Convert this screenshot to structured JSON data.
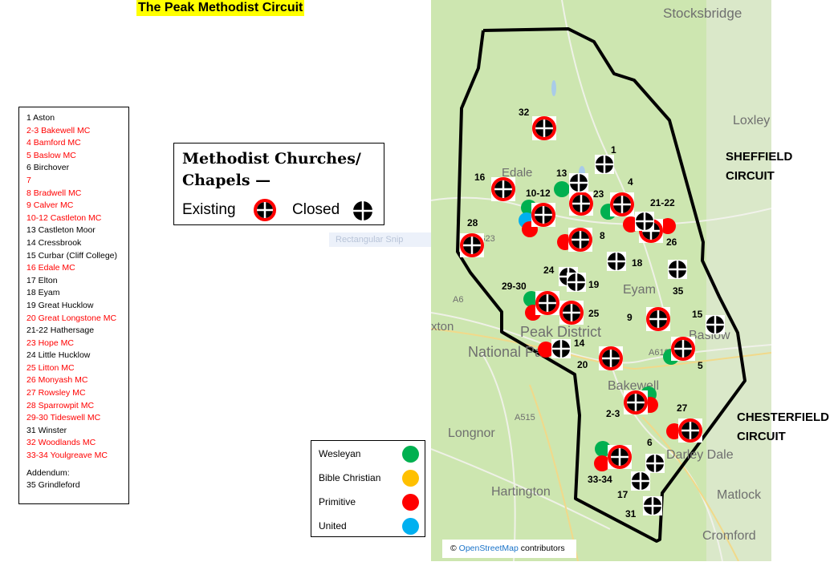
{
  "title": "The Peak Methodist Circuit",
  "churches": [
    {
      "text": "1 Aston",
      "existing": false
    },
    {
      "text": "2-3 Bakewell MC",
      "existing": true
    },
    {
      "text": "4 Bamford MC",
      "existing": true
    },
    {
      "text": "5 Baslow MC",
      "existing": true
    },
    {
      "text": "6 Birchover",
      "existing": false
    },
    {
      "text": "7",
      "existing": true
    },
    {
      "text": "8 Bradwell MC",
      "existing": true
    },
    {
      "text": "9 Calver MC",
      "existing": true
    },
    {
      "text": "10-12 Castleton MC",
      "existing": true
    },
    {
      "text": "13 Castleton Moor",
      "existing": false
    },
    {
      "text": "14 Cressbrook",
      "existing": false
    },
    {
      "text": "15 Curbar (Cliff College)",
      "existing": false
    },
    {
      "text": "16 Edale MC",
      "existing": true
    },
    {
      "text": "17 Elton",
      "existing": false
    },
    {
      "text": "18 Eyam",
      "existing": false
    },
    {
      "text": "19 Great Hucklow",
      "existing": false
    },
    {
      "text": "20 Great Longstone MC",
      "existing": true
    },
    {
      "text": "21-22 Hathersage",
      "existing": false
    },
    {
      "text": "23 Hope MC",
      "existing": true
    },
    {
      "text": "24 Little Hucklow",
      "existing": false
    },
    {
      "text": "25 Litton MC",
      "existing": true
    },
    {
      "text": "26 Monyash MC",
      "existing": true
    },
    {
      "text": "27 Rowsley MC",
      "existing": true
    },
    {
      "text": "28 Sparrowpit MC",
      "existing": true
    },
    {
      "text": "29-30 Tideswell MC",
      "existing": true
    },
    {
      "text": "31 Winster",
      "existing": false
    },
    {
      "text": "32 Woodlands MC",
      "existing": true
    },
    {
      "text": "33-34 Youlgreave MC",
      "existing": true
    }
  ],
  "addendum_label": "Addendum:",
  "addendum": [
    {
      "text": "35 Grindleford",
      "existing": false
    }
  ],
  "key": {
    "heading_line1": "Methodist Churches/",
    "heading_line2": "Chapels —",
    "existing": "Existing",
    "closed": "Closed"
  },
  "snip_label": "Rectangular Snip",
  "legend": [
    {
      "label": "Wesleyan",
      "color": "#00b050"
    },
    {
      "label": "Bible Christian",
      "color": "#ffc000"
    },
    {
      "label": "Primitive",
      "color": "#ff0000"
    },
    {
      "label": "United",
      "color": "#00b0f0"
    }
  ],
  "circuits": {
    "sheffield": [
      "SHEFFIELD",
      "CIRCUIT"
    ],
    "chesterfield": [
      "CHESTERFIELD",
      "CIRCUIT"
    ]
  },
  "places": [
    "Stocksbridge",
    "Loxley",
    "Edale",
    "Eyam",
    "Peak District",
    "National Park",
    "Baslow",
    "Bakewell",
    "xton",
    "Longnor",
    "Hartington",
    "Darley Dale",
    "Matlock",
    "Cromford",
    "A6",
    "A623",
    "A515",
    "A619"
  ],
  "markers": [
    {
      "label": "32",
      "status": "existing"
    },
    {
      "label": "16",
      "status": "existing"
    },
    {
      "label": "10-12",
      "status": "existing"
    },
    {
      "label": "23",
      "status": "existing"
    },
    {
      "label": "4",
      "status": "existing"
    },
    {
      "label": "26",
      "status": "existing"
    },
    {
      "label": "8",
      "status": "existing"
    },
    {
      "label": "28",
      "status": "existing"
    },
    {
      "label": "29-30",
      "status": "existing"
    },
    {
      "label": "25",
      "status": "existing"
    },
    {
      "label": "9",
      "status": "existing"
    },
    {
      "label": "5",
      "status": "existing"
    },
    {
      "label": "20",
      "status": "existing"
    },
    {
      "label": "2-3",
      "status": "existing"
    },
    {
      "label": "27",
      "status": "existing"
    },
    {
      "label": "33-34",
      "status": "existing"
    },
    {
      "label": "1",
      "status": "closed"
    },
    {
      "label": "13",
      "status": "closed"
    },
    {
      "label": "21-22",
      "status": "closed"
    },
    {
      "label": "18",
      "status": "closed"
    },
    {
      "label": "35",
      "status": "closed"
    },
    {
      "label": "24",
      "status": "closed"
    },
    {
      "label": "19",
      "status": "closed"
    },
    {
      "label": "15",
      "status": "closed"
    },
    {
      "label": "14",
      "status": "closed"
    },
    {
      "label": "6",
      "status": "closed"
    },
    {
      "label": "17",
      "status": "closed"
    },
    {
      "label": "31",
      "status": "closed"
    }
  ],
  "denomination_dots": [
    "Wesleyan",
    "Wesleyan",
    "United",
    "Primitive",
    "Wesleyan",
    "Primitive",
    "Primitive",
    "Primitive",
    "Wesleyan",
    "Primitive",
    "Primitive",
    "Wesleyan",
    "Wesleyan",
    "Primitive",
    "Primitive",
    "Wesleyan",
    "Primitive"
  ],
  "attribution": {
    "symbol": "©",
    "link": "OpenStreetMap",
    "suffix": "contributors"
  }
}
